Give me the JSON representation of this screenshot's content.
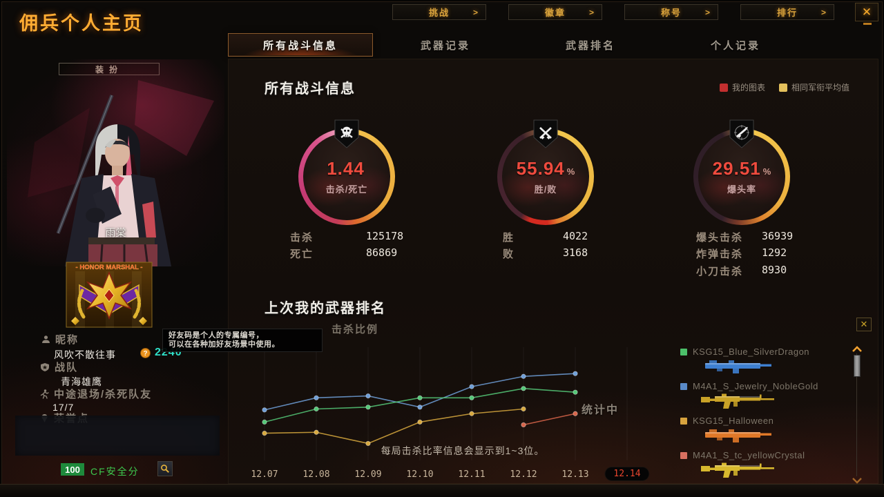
{
  "window": {
    "title": "佣兵个人主页",
    "close_label": "✕"
  },
  "top_nav": {
    "chevron": ">",
    "buttons": [
      {
        "label": "挑战"
      },
      {
        "label": "徽章"
      },
      {
        "label": "称号"
      },
      {
        "label": "排行"
      }
    ]
  },
  "tabs": [
    {
      "label": "所有战斗信息",
      "active": true
    },
    {
      "label": "武器记录",
      "active": false
    },
    {
      "label": "武器排名",
      "active": false
    },
    {
      "label": "个人记录",
      "active": false
    }
  ],
  "sidebar": {
    "dress_button": "装扮",
    "character_name": "雨棠",
    "badge_title": "- HONOR MARSHAL -",
    "fields": [
      {
        "icon": "person-icon",
        "label": "昵称",
        "value": "风吹不散往事"
      },
      {
        "icon": "clan-shield-icon",
        "label": "战队",
        "value": "青海雄鹰"
      },
      {
        "icon": "runner-icon",
        "label": "中途退场/杀死队友",
        "value": "17/7"
      },
      {
        "icon": "medal-icon",
        "label": "荣誉点",
        "value": ""
      }
    ],
    "friend_code": {
      "value": "2240",
      "color": "#2fe0c8",
      "icon": "question-coin-icon"
    },
    "tooltip": {
      "line1": "好友码是个人的专属编号，",
      "line2": "可以在各种加好友场景中使用。"
    },
    "safety": {
      "score": "100",
      "label": "CF安全分",
      "score_bg": "#1e8a3c",
      "label_color": "#3dc94e"
    }
  },
  "main": {
    "section1_title": "所有战斗信息",
    "legend": [
      {
        "label": "我的图表",
        "color": "#c22f2f"
      },
      {
        "label": "相同军衔平均值",
        "color": "#e3c05c"
      }
    ],
    "gauges": [
      {
        "icon": "skull-icon",
        "value": "1.44",
        "unit": "",
        "label": "击杀/死亡"
      },
      {
        "icon": "crossed-swords-icon",
        "value": "55.94",
        "unit": "%",
        "label": "胜/败"
      },
      {
        "icon": "rifle-icon",
        "value": "29.51",
        "unit": "%",
        "label": "爆头率"
      }
    ],
    "stat_columns": [
      {
        "rows": [
          {
            "label": "击杀",
            "value": "125178"
          },
          {
            "label": "死亡",
            "value": "86869"
          }
        ]
      },
      {
        "rows": [
          {
            "label": "胜",
            "value": "4022"
          },
          {
            "label": "败",
            "value": "3168"
          }
        ]
      },
      {
        "rows": [
          {
            "label": "爆头击杀",
            "value": "36939"
          },
          {
            "label": "炸弹击杀",
            "value": "1292"
          },
          {
            "label": "小刀击杀",
            "value": "8930"
          }
        ]
      }
    ],
    "section2_title": "上次我的武器排名",
    "section2_subtitle": "击杀比例",
    "calculating_label": "统计中",
    "chart_note": "每局击杀比率信息会显示到1~3位。"
  },
  "chart_data": {
    "type": "line",
    "title": "上次我的武器排名 - 击杀比例",
    "x": [
      "12.07",
      "12.08",
      "12.09",
      "12.10",
      "12.11",
      "12.12",
      "12.13",
      "12.14"
    ],
    "x_highlight": "12.14",
    "xlabel": "",
    "ylabel": "",
    "ylim": [
      0,
      100
    ],
    "grid": "vertical-only",
    "y_axis_visible": false,
    "series": [
      {
        "name": "M4A1_S_Jewelry_NobleGold",
        "color": "#6f9fd8",
        "values": [
          49,
          62,
          64,
          52,
          74,
          85,
          88,
          null
        ]
      },
      {
        "name": "KSG15_Blue_SilverDragon",
        "color": "#55c878",
        "values": [
          36,
          50,
          52,
          62,
          62,
          72,
          68,
          null
        ]
      },
      {
        "name": "KSG15_Halloween",
        "color": "#d8a93e",
        "values": [
          24,
          25,
          13,
          36,
          45,
          50,
          null,
          null
        ]
      },
      {
        "name": "M4A1_S_tc_yellowCrystal",
        "color": "#d8654a",
        "values": [
          null,
          null,
          null,
          null,
          null,
          33,
          45,
          null
        ]
      }
    ]
  },
  "weapons_panel": {
    "close_label": "✕",
    "items": [
      {
        "name": "KSG15_Blue_SilverDragon",
        "swatch": "#4cc06a",
        "gun_color": "#3e7fd0",
        "gun_type": "shotgun"
      },
      {
        "name": "M4A1_S_Jewelry_NobleGold",
        "swatch": "#5a8ac8",
        "gun_color": "#c9a227",
        "gun_type": "rifle"
      },
      {
        "name": "KSG15_Halloween",
        "swatch": "#d8a33e",
        "gun_color": "#e07828",
        "gun_type": "shotgun"
      },
      {
        "name": "M4A1_S_tc_yellowCrystal",
        "swatch": "#d87060",
        "gun_color": "#d8b92e",
        "gun_type": "rifle"
      }
    ]
  }
}
